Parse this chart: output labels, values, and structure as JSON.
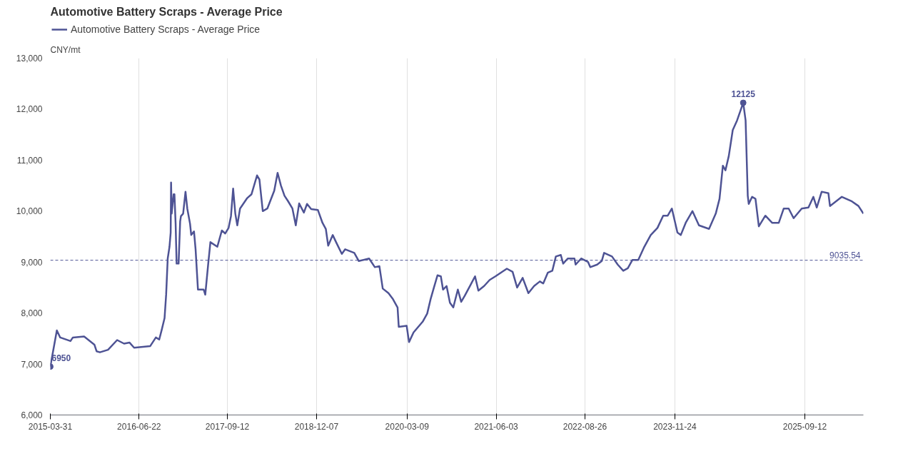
{
  "chart_data": {
    "type": "line",
    "title": "Automotive Battery Scraps - Average Price",
    "ylabel": "CNY/mt",
    "legend": "top left",
    "grid": "x",
    "marker": "none",
    "line_style": "solid",
    "xlim": [
      "2015-03-31",
      "2026-07-05"
    ],
    "xticks": [
      "2015-03-31",
      "2016-06-22",
      "2017-09-12",
      "2018-12-07",
      "2020-03-09",
      "2021-06-03",
      "2022-08-26",
      "2023-11-24",
      "2025-09-12"
    ],
    "ylim": [
      6000,
      13000
    ],
    "yticks": [
      {
        "value": 6000,
        "label": "6,000"
      },
      {
        "value": 7000,
        "label": "7,000"
      },
      {
        "value": 8000,
        "label": "8,000"
      },
      {
        "value": 9000,
        "label": "9,000"
      },
      {
        "value": 10000,
        "label": "10,000"
      },
      {
        "value": 11000,
        "label": "11,000"
      },
      {
        "value": 12000,
        "label": "12,000"
      },
      {
        "value": 13000,
        "label": "13,000"
      }
    ],
    "ref_lines": [
      {
        "axis": "y",
        "value": 9035.54,
        "label": "9035.54",
        "color": "#4e5394",
        "line_style": "dashed"
      }
    ],
    "annotations": [
      {
        "text": "6950",
        "x": "2015-03-31",
        "y": 6950
      },
      {
        "text": "12125",
        "x": "2024-11-04",
        "y": 12125
      }
    ],
    "series": [
      {
        "name": "Automotive Battery Scraps - Average Price",
        "color": "#4e5394",
        "x": [
          "2015-03-31",
          "2015-05-03",
          "2015-05-20",
          "2015-07-11",
          "2015-07-23",
          "2015-09-18",
          "2015-11-09",
          "2015-11-20",
          "2015-12-07",
          "2016-01-17",
          "2016-03-03",
          "2016-04-07",
          "2016-05-05",
          "2016-05-28",
          "2016-08-17",
          "2016-09-15",
          "2016-10-02",
          "2016-10-14",
          "2016-10-29",
          "2016-11-06",
          "2016-11-14",
          "2016-11-23",
          "2016-11-29",
          "2016-12-01",
          "2016-12-04",
          "2016-12-14",
          "2016-12-18",
          "2016-12-24",
          "2016-12-29",
          "2017-01-08",
          "2017-01-16",
          "2017-01-20",
          "2017-01-31",
          "2017-02-12",
          "2017-02-21",
          "2017-03-07",
          "2017-03-13",
          "2017-03-27",
          "2017-04-04",
          "2017-04-16",
          "2017-05-15",
          "2017-05-23",
          "2017-06-07",
          "2017-06-18",
          "2017-07-23",
          "2017-08-15",
          "2017-09-01",
          "2017-09-18",
          "2017-09-30",
          "2017-10-11",
          "2017-10-22",
          "2017-11-01",
          "2017-11-15",
          "2017-12-20",
          "2018-01-12",
          "2018-02-09",
          "2018-02-21",
          "2018-03-10",
          "2018-04-02",
          "2018-05-07",
          "2018-05-24",
          "2018-06-10",
          "2018-06-28",
          "2018-07-15",
          "2018-08-07",
          "2018-08-24",
          "2018-09-10",
          "2018-10-04",
          "2018-10-20",
          "2018-11-10",
          "2018-12-14",
          "2019-01-06",
          "2019-01-23",
          "2019-02-04",
          "2019-02-27",
          "2019-03-16",
          "2019-04-14",
          "2019-05-01",
          "2019-06-16",
          "2019-07-09",
          "2019-08-30",
          "2019-09-28",
          "2019-10-21",
          "2019-11-07",
          "2019-12-06",
          "2019-12-29",
          "2020-01-21",
          "2020-01-27",
          "2020-03-07",
          "2020-03-19",
          "2020-04-11",
          "2020-05-27",
          "2020-06-19",
          "2020-07-06",
          "2020-07-23",
          "2020-08-10",
          "2020-08-27",
          "2020-09-07",
          "2020-09-25",
          "2020-10-12",
          "2020-10-29",
          "2020-11-21",
          "2020-12-08",
          "2020-12-26",
          "2021-01-24",
          "2021-02-16",
          "2021-03-05",
          "2021-04-03",
          "2021-05-01",
          "2021-05-30",
          "2021-07-04",
          "2021-07-27",
          "2021-08-25",
          "2021-09-17",
          "2021-10-15",
          "2021-11-13",
          "2021-12-12",
          "2022-01-10",
          "2022-01-27",
          "2022-02-19",
          "2022-03-14",
          "2022-04-01",
          "2022-04-26",
          "2022-05-08",
          "2022-05-31",
          "2022-07-04",
          "2022-07-10",
          "2022-08-07",
          "2022-09-11",
          "2022-09-22",
          "2022-10-27",
          "2022-11-19",
          "2022-12-01",
          "2023-01-10",
          "2023-02-08",
          "2023-03-08",
          "2023-03-31",
          "2023-04-23",
          "2023-05-23",
          "2023-06-20",
          "2023-07-25",
          "2023-08-28",
          "2023-09-26",
          "2023-10-19",
          "2023-11-09",
          "2023-12-07",
          "2023-12-24",
          "2024-01-18",
          "2024-02-21",
          "2024-03-25",
          "2024-05-15",
          "2024-06-18",
          "2024-07-07",
          "2024-07-24",
          "2024-08-06",
          "2024-08-23",
          "2024-09-12",
          "2024-10-04",
          "2024-10-21",
          "2024-11-04",
          "2024-11-16",
          "2024-11-27",
          "2024-12-02",
          "2024-12-19",
          "2025-01-05",
          "2025-01-22",
          "2025-02-24",
          "2025-03-30",
          "2025-05-03",
          "2025-05-28",
          "2025-06-22",
          "2025-07-17",
          "2025-08-27",
          "2025-09-30",
          "2025-10-25",
          "2025-11-11",
          "2025-12-06",
          "2026-01-09",
          "2026-01-17",
          "2026-03-18",
          "2026-05-08",
          "2026-06-10",
          "2026-07-05"
        ],
        "values": [
          6950,
          7660,
          7520,
          7450,
          7520,
          7540,
          7380,
          7250,
          7230,
          7280,
          7470,
          7400,
          7420,
          7320,
          7350,
          7520,
          7480,
          7660,
          7900,
          8360,
          9070,
          9300,
          9580,
          10560,
          9950,
          10330,
          10330,
          9750,
          8970,
          8970,
          9800,
          9900,
          9950,
          10380,
          10050,
          9750,
          9530,
          9600,
          9250,
          8460,
          8460,
          8360,
          8970,
          9390,
          9300,
          9620,
          9560,
          9670,
          9900,
          10440,
          9950,
          9720,
          10050,
          10250,
          10330,
          10700,
          10620,
          10000,
          10050,
          10400,
          10750,
          10500,
          10300,
          10200,
          10050,
          9720,
          10150,
          9970,
          10140,
          10040,
          10020,
          9770,
          9650,
          9320,
          9530,
          9390,
          9160,
          9250,
          9180,
          9020,
          9070,
          8900,
          8920,
          8480,
          8390,
          8270,
          8110,
          7730,
          7750,
          7430,
          7620,
          7830,
          7990,
          8270,
          8500,
          8740,
          8720,
          8460,
          8530,
          8200,
          8110,
          8460,
          8220,
          8340,
          8550,
          8720,
          8440,
          8530,
          8650,
          8720,
          8810,
          8870,
          8810,
          8500,
          8690,
          8390,
          8530,
          8620,
          8580,
          8790,
          8830,
          9110,
          9140,
          8970,
          9070,
          9070,
          8950,
          9070,
          9000,
          8900,
          8950,
          9020,
          9180,
          9110,
          8950,
          8830,
          8880,
          9040,
          9040,
          9280,
          9530,
          9670,
          9910,
          9910,
          10050,
          9580,
          9530,
          9770,
          10000,
          9720,
          9650,
          9950,
          10240,
          10890,
          10800,
          11080,
          11590,
          11780,
          11970,
          12125,
          11780,
          10300,
          10140,
          10280,
          10240,
          9700,
          9910,
          9770,
          9770,
          10050,
          10050,
          9860,
          10050,
          10070,
          10280,
          10070,
          10380,
          10350,
          10100,
          10280,
          10190,
          10100,
          9950
        ]
      }
    ]
  }
}
